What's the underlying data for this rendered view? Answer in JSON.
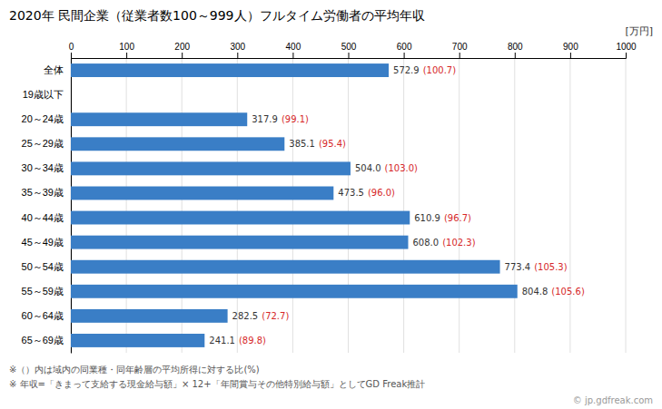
{
  "chart_data": {
    "type": "bar",
    "orientation": "horizontal",
    "title": "2020年 民間企業（従業者数100～999人）フルタイム労働者の平均年収",
    "xlabel": "[万円]",
    "categories": [
      "全体",
      "19歳以下",
      "20～24歳",
      "25～29歳",
      "30～34歳",
      "35～39歳",
      "40～44歳",
      "45～49歳",
      "50～54歳",
      "55～59歳",
      "60～64歳",
      "65～69歳"
    ],
    "values": [
      572.9,
      null,
      317.9,
      385.1,
      504.0,
      473.5,
      610.9,
      608.0,
      773.4,
      804.8,
      282.5,
      241.1
    ],
    "value_labels": [
      "572.9",
      null,
      "317.9",
      "385.1",
      "504.0",
      "473.5",
      "610.9",
      "608.0",
      "773.4",
      "804.8",
      "282.5",
      "241.1"
    ],
    "ratios": [
      100.7,
      null,
      99.1,
      95.4,
      103.0,
      96.0,
      96.7,
      102.3,
      105.3,
      105.6,
      72.7,
      89.8
    ],
    "ratio_labels": [
      "(100.7)",
      null,
      "(99.1)",
      "(95.4)",
      "(103.0)",
      "(96.0)",
      "(96.7)",
      "(102.3)",
      "(105.3)",
      "(105.6)",
      "(72.7)",
      "(89.8)"
    ],
    "color": "#3A7EC6",
    "data_labels": true,
    "xlim": [
      0,
      1000
    ],
    "xticks": [
      0,
      100,
      200,
      300,
      400,
      500,
      600,
      700,
      800,
      900,
      1000
    ],
    "grid": true,
    "annotations": [
      "※（）内は域内の同業種・同年齢層の平均所得に対する比(%)",
      "※ 年収=「きまって支給する現金給与額」× 12+「年間賞与その他特別給与額」としてGD Freak推計",
      "© jp.gdfreak.com"
    ]
  }
}
